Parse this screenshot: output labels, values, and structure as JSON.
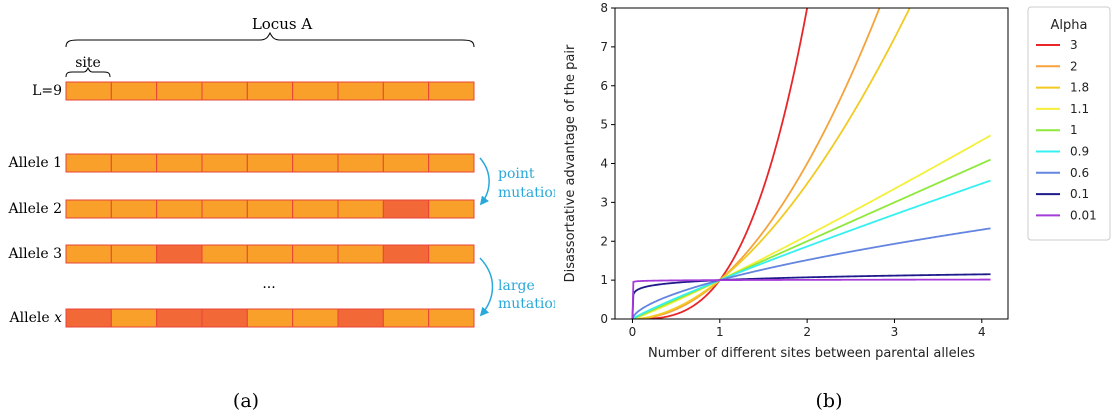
{
  "colors": {
    "cell_fill": "#F8A02A",
    "cell_mutated": "#F26836",
    "cell_stroke": "#E8443A",
    "mutation_arrow": "#29A9DB",
    "mutation_text": "#29A9DB"
  },
  "panel_a": {
    "caption": "(a)",
    "locus_label": "Locus A",
    "site_label": "site",
    "rows": [
      {
        "label": "L=9",
        "mutated": []
      },
      {
        "label": "Allele 1",
        "mutated": []
      },
      {
        "label": "Allele 2",
        "mutated": [
          7
        ]
      },
      {
        "label": "Allele 3",
        "mutated": [
          2,
          7
        ]
      },
      {
        "label": "Allele ",
        "label_italic": "x",
        "mutated": [
          0,
          2,
          3,
          6
        ]
      }
    ],
    "cells_per_row": 9,
    "ellipsis": "...",
    "point_mutation": [
      "point",
      "mutation"
    ],
    "large_mutation": [
      "large",
      "mutation"
    ]
  },
  "panel_b": {
    "caption": "(b)",
    "legend_title": "Alpha"
  },
  "chart_data": {
    "type": "line",
    "title": "",
    "xlabel": "Number of different sites between parental alleles",
    "ylabel": "Disassortative advantage of the pair",
    "xlim": [
      -0.2,
      4.3
    ],
    "ylim": [
      0,
      8
    ],
    "xticks": [
      0,
      1,
      2,
      3,
      4
    ],
    "yticks": [
      0,
      1,
      2,
      3,
      4,
      5,
      6,
      7,
      8
    ],
    "x_range": [
      0,
      4.1
    ],
    "function": "y = x^alpha",
    "legend_placement": "outside-right",
    "grid": false,
    "series": [
      {
        "name": "3",
        "alpha": 3,
        "color": "#E8262A"
      },
      {
        "name": "2",
        "alpha": 2,
        "color": "#F5A33A"
      },
      {
        "name": "1.8",
        "alpha": 1.8,
        "color": "#F2CA22"
      },
      {
        "name": "1.1",
        "alpha": 1.1,
        "color": "#F4F03A"
      },
      {
        "name": "1",
        "alpha": 1,
        "color": "#8FE83A"
      },
      {
        "name": "0.9",
        "alpha": 0.9,
        "color": "#35F0F0"
      },
      {
        "name": "0.6",
        "alpha": 0.6,
        "color": "#6385E0"
      },
      {
        "name": "0.1",
        "alpha": 0.1,
        "color": "#1E1A8C"
      },
      {
        "name": "0.01",
        "alpha": 0.01,
        "color": "#A43AD8"
      }
    ]
  }
}
